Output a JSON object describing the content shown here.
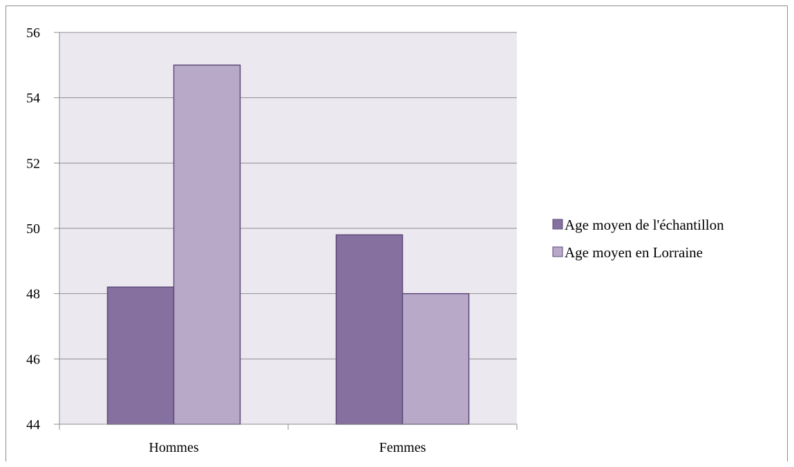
{
  "chart_data": {
    "type": "bar",
    "categories": [
      "Hommes",
      "Femmes"
    ],
    "series": [
      {
        "name": "Age moyen de l'échantillon",
        "values": [
          48.2,
          49.8
        ],
        "color": "#8670a0"
      },
      {
        "name": "Age moyen en Lorraine",
        "values": [
          55.0,
          48.0
        ],
        "color": "#b8a9c9"
      }
    ],
    "ylim": [
      44,
      56
    ],
    "yticks": [
      "44",
      "46",
      "48",
      "50",
      "52",
      "54",
      "56"
    ],
    "grid": true,
    "legend_position": "right",
    "plot_background": "#ece8f0",
    "bar_border": "#5c4a78"
  }
}
